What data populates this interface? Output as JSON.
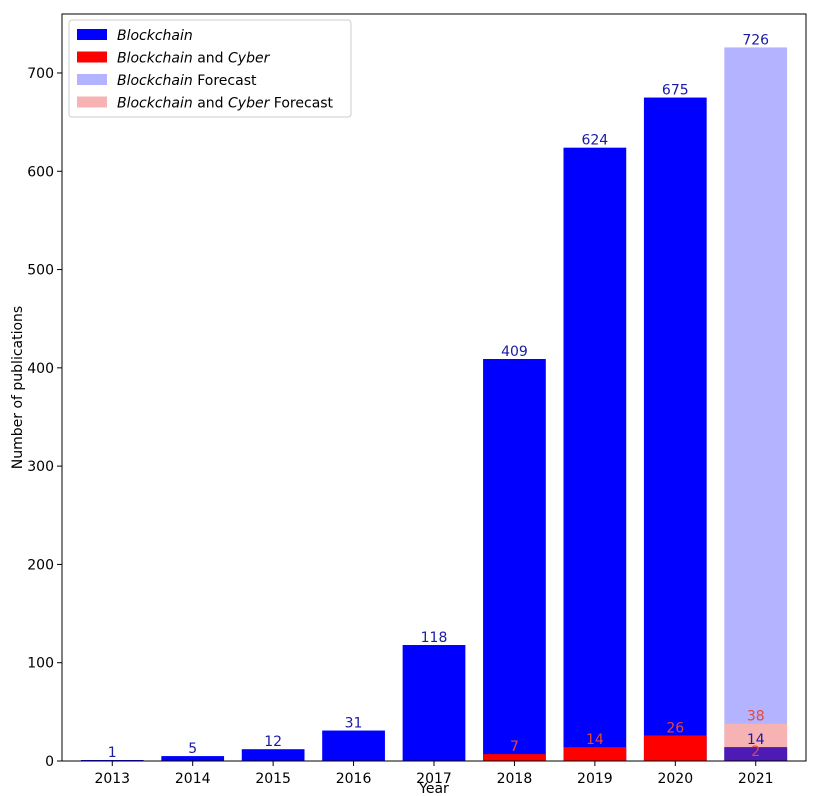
{
  "chart_data": {
    "type": "bar",
    "xlabel": "Year",
    "ylabel": "Number of publications",
    "ylim": [
      0,
      760
    ],
    "yticks": [
      0,
      100,
      200,
      300,
      400,
      500,
      600,
      700
    ],
    "categories": [
      "2013",
      "2014",
      "2015",
      "2016",
      "2017",
      "2018",
      "2019",
      "2020",
      "2021"
    ],
    "series": [
      {
        "name": "Blockchain",
        "legend_parts": [
          {
            "text": "Blockchain",
            "italic": true
          }
        ],
        "color": "#0000ff",
        "label_color": "#1a1aa6",
        "values": [
          1,
          5,
          12,
          31,
          118,
          409,
          624,
          675,
          14
        ]
      },
      {
        "name": "Blockchain and Cyber",
        "legend_parts": [
          {
            "text": "Blockchain",
            "italic": true
          },
          {
            "text": " and ",
            "italic": false
          },
          {
            "text": "Cyber",
            "italic": true
          }
        ],
        "color": "#ff0000",
        "label_color": "#e8463c",
        "values": [
          null,
          null,
          null,
          null,
          null,
          7,
          14,
          26,
          2
        ]
      },
      {
        "name": "Blockchain Forecast",
        "legend_parts": [
          {
            "text": "Blockchain",
            "italic": true
          },
          {
            "text": " Forecast",
            "italic": false
          }
        ],
        "color": "#b3b3ff",
        "label_color": "#1a1aa6",
        "values": [
          null,
          null,
          null,
          null,
          null,
          null,
          null,
          null,
          726
        ]
      },
      {
        "name": "Blockchain and Cyber Forecast",
        "legend_parts": [
          {
            "text": "Blockchain",
            "italic": true
          },
          {
            "text": " and ",
            "italic": false
          },
          {
            "text": "Cyber",
            "italic": true
          },
          {
            "text": " Forecast",
            "italic": false
          }
        ],
        "color": "#f7b3b3",
        "label_color": "#e8463c",
        "values": [
          null,
          null,
          null,
          null,
          null,
          null,
          null,
          null,
          38
        ]
      }
    ],
    "legend_position": "upper-left",
    "grid": false
  }
}
